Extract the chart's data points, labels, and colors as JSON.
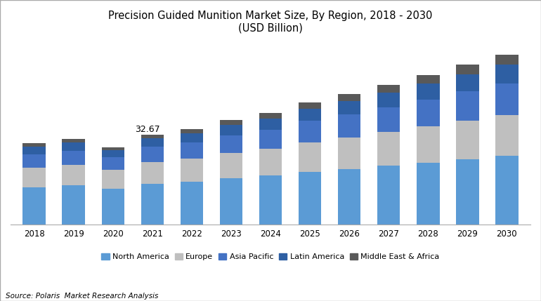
{
  "title_line1": "Precision Guided Munition Market Size, By Region, 2018 - 2030",
  "title_line2": "(USD Billion)",
  "source": "Source: Polaris  Market Research Analysis",
  "years": [
    2018,
    2019,
    2020,
    2021,
    2022,
    2023,
    2024,
    2025,
    2026,
    2027,
    2028,
    2029,
    2030
  ],
  "segments": [
    "North America",
    "Europe",
    "Asia Pacific",
    "Latin America",
    "Middle East & Africa"
  ],
  "colors": [
    "#5b9bd5",
    "#bfbfbf",
    "#4472c4",
    "#2e5fa3",
    "#595959"
  ],
  "annotation_year": 2021,
  "annotation_value": "32.67",
  "data": {
    "North America": [
      13.5,
      14.2,
      13.0,
      14.8,
      15.5,
      16.8,
      17.8,
      19.2,
      20.2,
      21.3,
      22.5,
      23.8,
      25.0
    ],
    "Europe": [
      7.2,
      7.5,
      6.8,
      8.0,
      8.5,
      9.2,
      9.8,
      10.8,
      11.5,
      12.3,
      13.2,
      14.0,
      15.0
    ],
    "Asia Pacific": [
      4.8,
      5.1,
      4.6,
      5.5,
      5.9,
      6.5,
      7.0,
      7.8,
      8.4,
      9.1,
      9.9,
      10.7,
      11.5
    ],
    "Latin America": [
      2.8,
      3.0,
      2.7,
      3.0,
      3.3,
      3.7,
      4.0,
      4.5,
      4.9,
      5.3,
      5.8,
      6.3,
      6.8
    ],
    "Middle East & Africa": [
      1.2,
      1.4,
      1.1,
      1.37,
      1.5,
      1.8,
      2.0,
      2.3,
      2.5,
      2.8,
      3.1,
      3.4,
      3.7
    ]
  }
}
